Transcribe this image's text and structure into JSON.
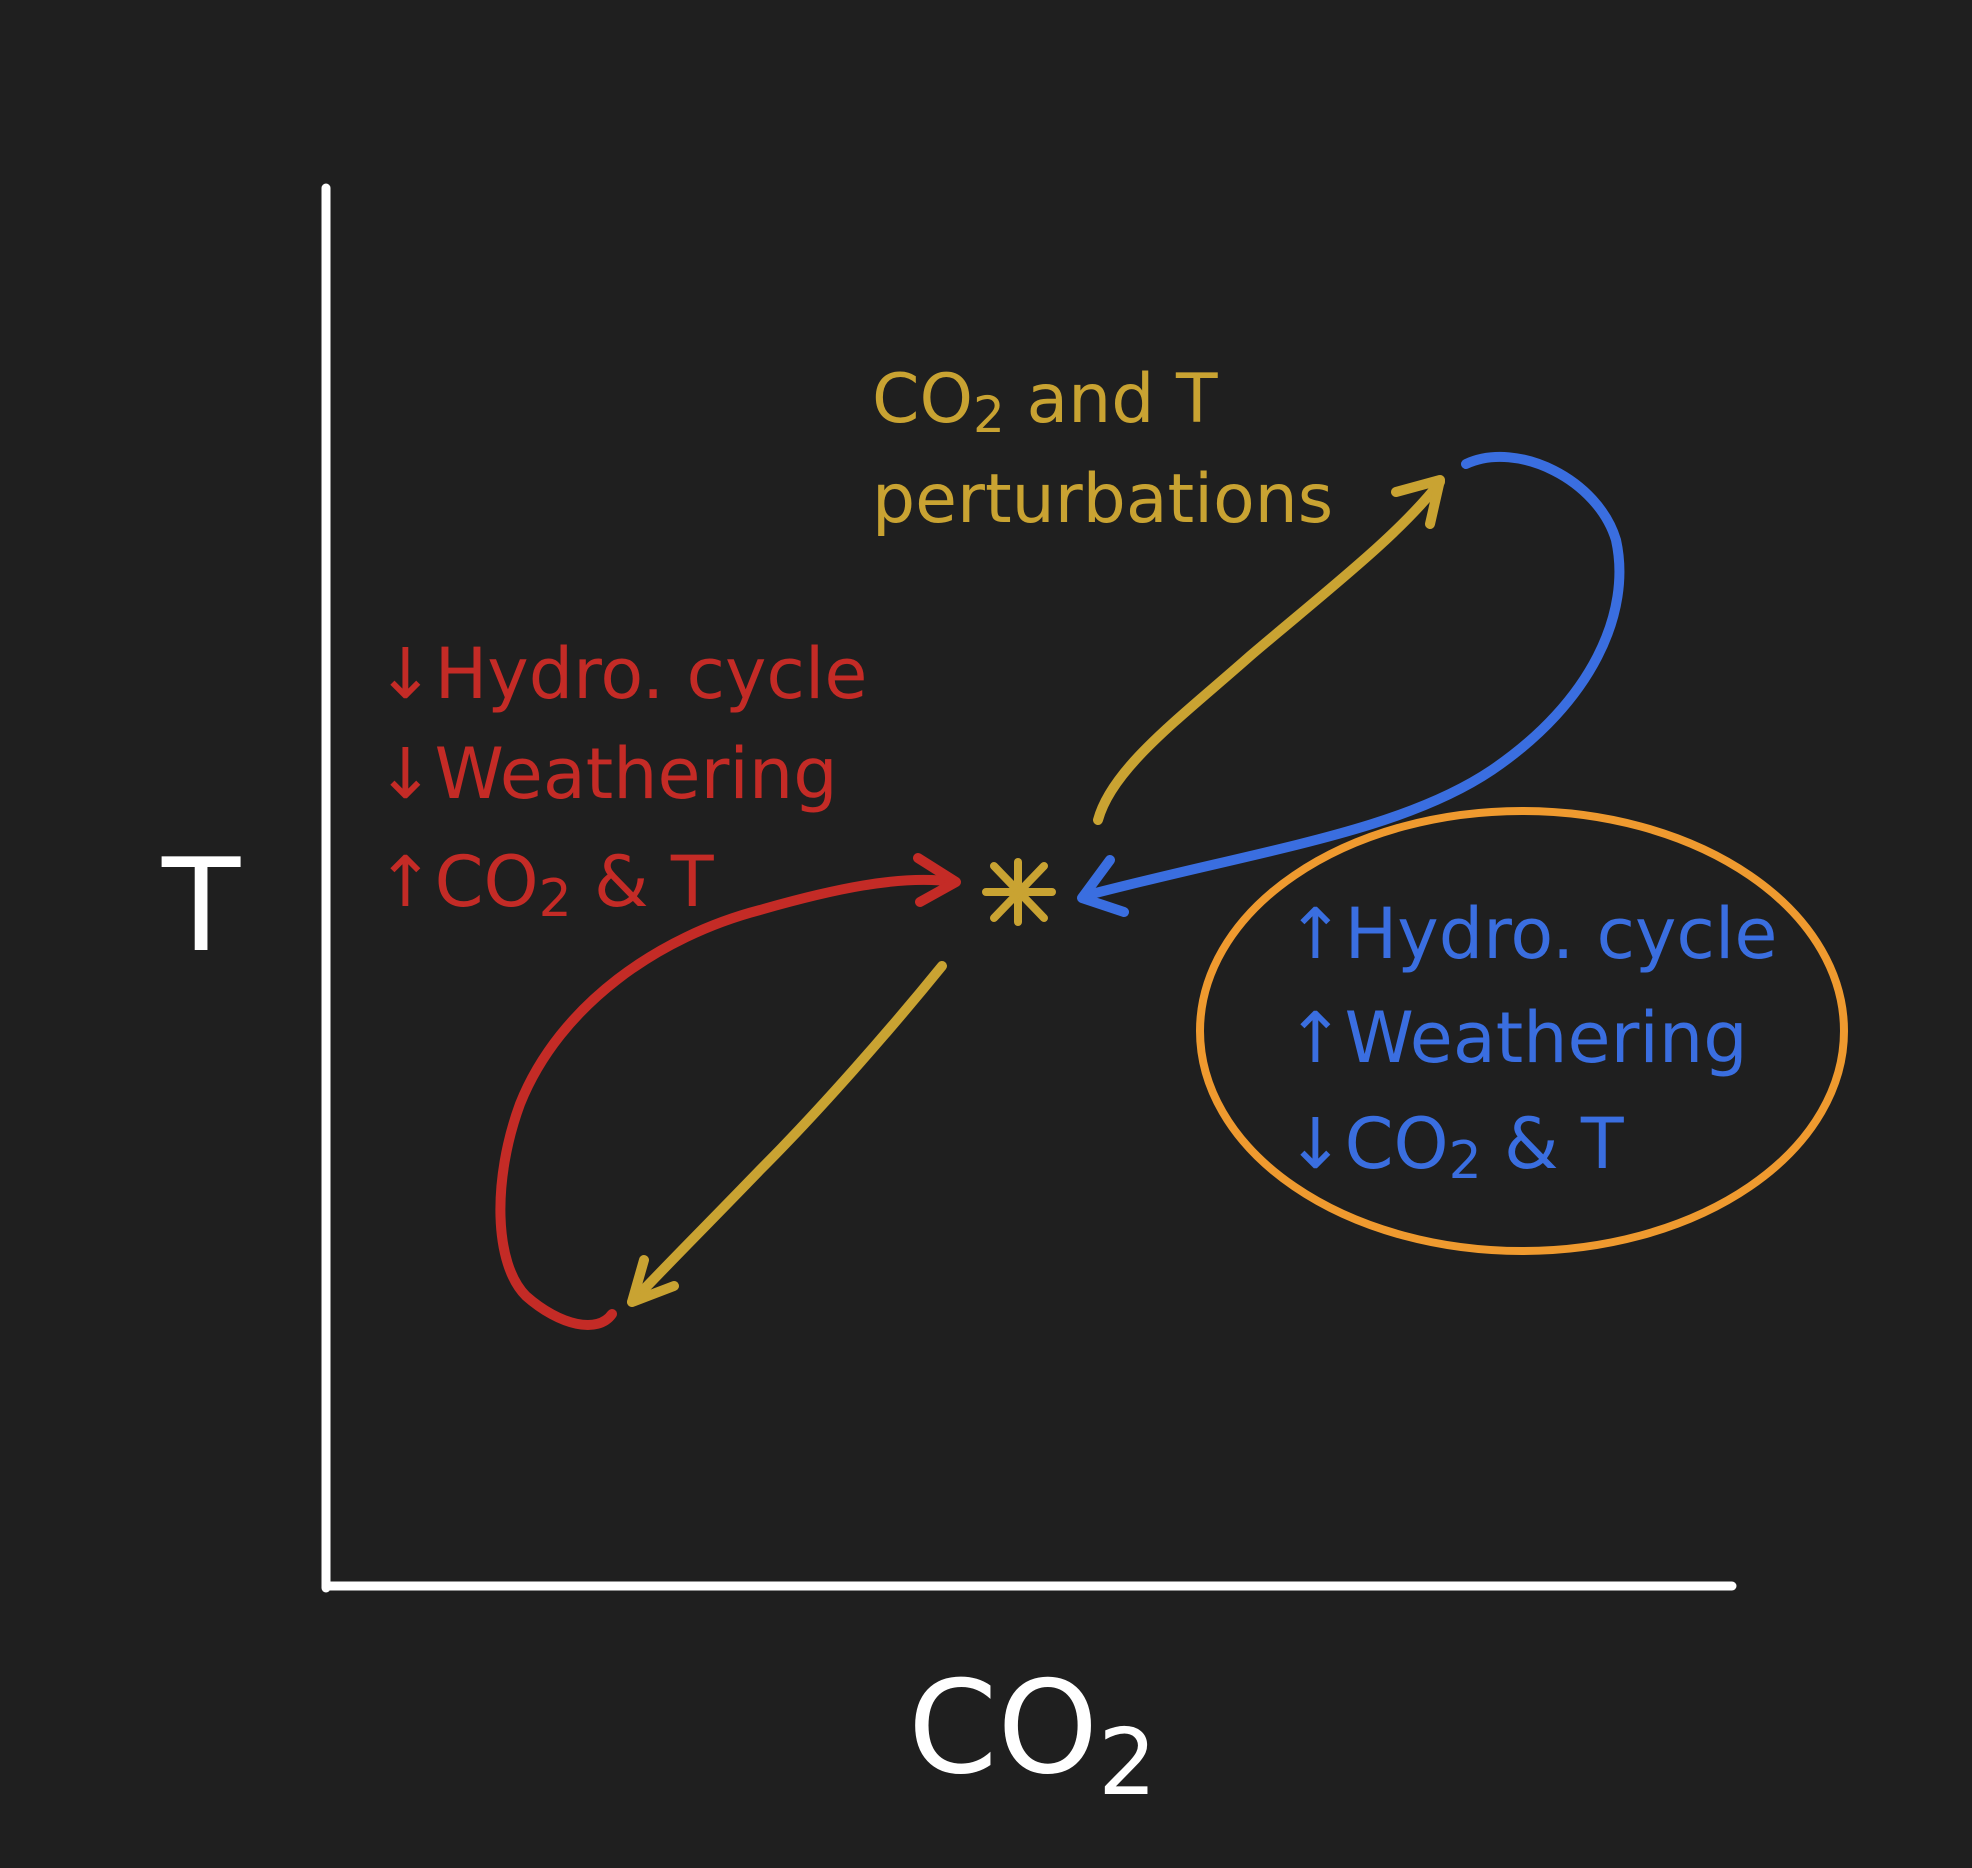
{
  "colors": {
    "background": "#1f1f1f",
    "axes": "#ffffff",
    "perturbation": "#c9a332",
    "negative_feedback": "#c42b26",
    "positive_feedback": "#3a6ee0",
    "highlight_ellipse": "#ef9a2f"
  },
  "axes": {
    "y_label": "T",
    "x_label_main": "CO",
    "x_label_sub": "2"
  },
  "equilibrium": {
    "symbol": "*"
  },
  "perturbation_label": {
    "line1_main": "CO",
    "line1_sub": "2",
    "line1_rest": " and T",
    "line2": "perturbations"
  },
  "cooling_response": {
    "line1": "↓Hydro. cycle",
    "line2": "↓Weathering",
    "line3_main": "↑CO",
    "line3_sub": "2",
    "line3_rest": " & T"
  },
  "warming_response": {
    "line1": "↑Hydro. cycle",
    "line2": "↑Weathering",
    "line3_main": "↓CO",
    "line3_sub": "2",
    "line3_rest": " & T"
  }
}
